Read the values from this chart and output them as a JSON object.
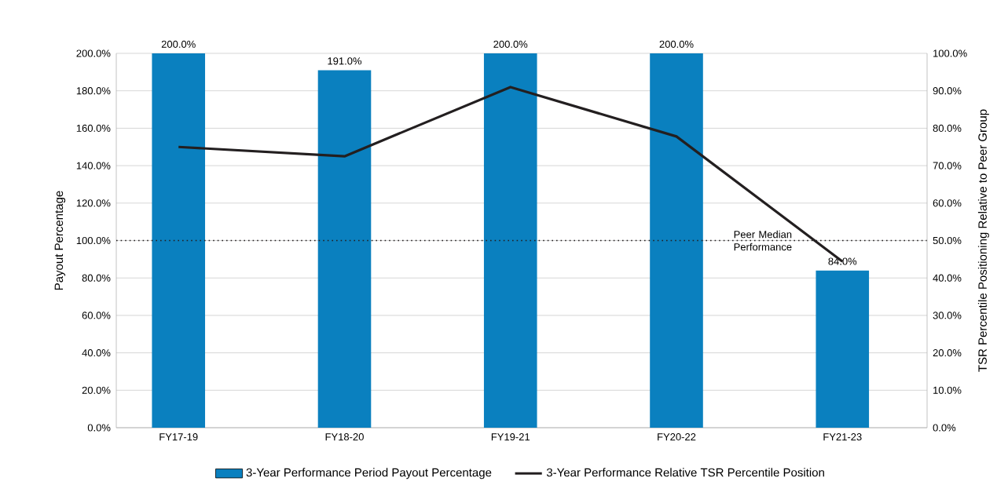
{
  "chart_data": {
    "type": "bar",
    "categories": [
      "FY17-19",
      "FY18-20",
      "FY19-21",
      "FY20-22",
      "FY21-23"
    ],
    "ylabel": "Payout Percentage",
    "y2label": "TSR Percentile Positioning Relative to Peer Group",
    "series": [
      {
        "name": "3-Year Performance Period Payout Percentage",
        "color": "#0a80bf",
        "values": [
          200,
          191,
          200,
          200,
          84
        ],
        "value_labels": [
          "200.0%",
          "191.0%",
          "200.0%",
          "200.0%",
          "84.0%"
        ]
      },
      {
        "name": "3-Year Performance Relative TSR Percentile Position",
        "type": "line",
        "axis": "y2",
        "color": "#231f20",
        "values": [
          75,
          72.5,
          91,
          77.8,
          44.4
        ],
        "marker": "none",
        "line_style": "solid"
      }
    ],
    "ylim": [
      0,
      200
    ],
    "yticks": [
      {
        "value": 0,
        "label": "0.0%"
      },
      {
        "value": 20,
        "label": "20.0%"
      },
      {
        "value": 40,
        "label": "40.0%"
      },
      {
        "value": 60,
        "label": "60.0%"
      },
      {
        "value": 80,
        "label": "80.0%"
      },
      {
        "value": 100,
        "label": "100.0%"
      },
      {
        "value": 120,
        "label": "120.0%"
      },
      {
        "value": 140,
        "label": "140.0%"
      },
      {
        "value": 160,
        "label": "160.0%"
      },
      {
        "value": 180,
        "label": "180.0%"
      },
      {
        "value": 200,
        "label": "200.0%"
      }
    ],
    "y2lim": [
      0,
      100
    ],
    "y2ticks": [
      {
        "value": 0,
        "label": "0.0%"
      },
      {
        "value": 10,
        "label": "10.0%"
      },
      {
        "value": 20,
        "label": "20.0%"
      },
      {
        "value": 30,
        "label": "30.0%"
      },
      {
        "value": 40,
        "label": "40.0%"
      },
      {
        "value": 50,
        "label": "50.0%"
      },
      {
        "value": 60,
        "label": "60.0%"
      },
      {
        "value": 70,
        "label": "70.0%"
      },
      {
        "value": 80,
        "label": "80.0%"
      },
      {
        "value": 90,
        "label": "90.0%"
      },
      {
        "value": 100,
        "label": "100.0%"
      }
    ],
    "ref_lines": [
      {
        "axis": "y",
        "value": 100,
        "label": "Peer Median Performance",
        "color": "#231f20",
        "line_style": "dotted"
      }
    ],
    "grid": "y",
    "legend": "bottom"
  }
}
